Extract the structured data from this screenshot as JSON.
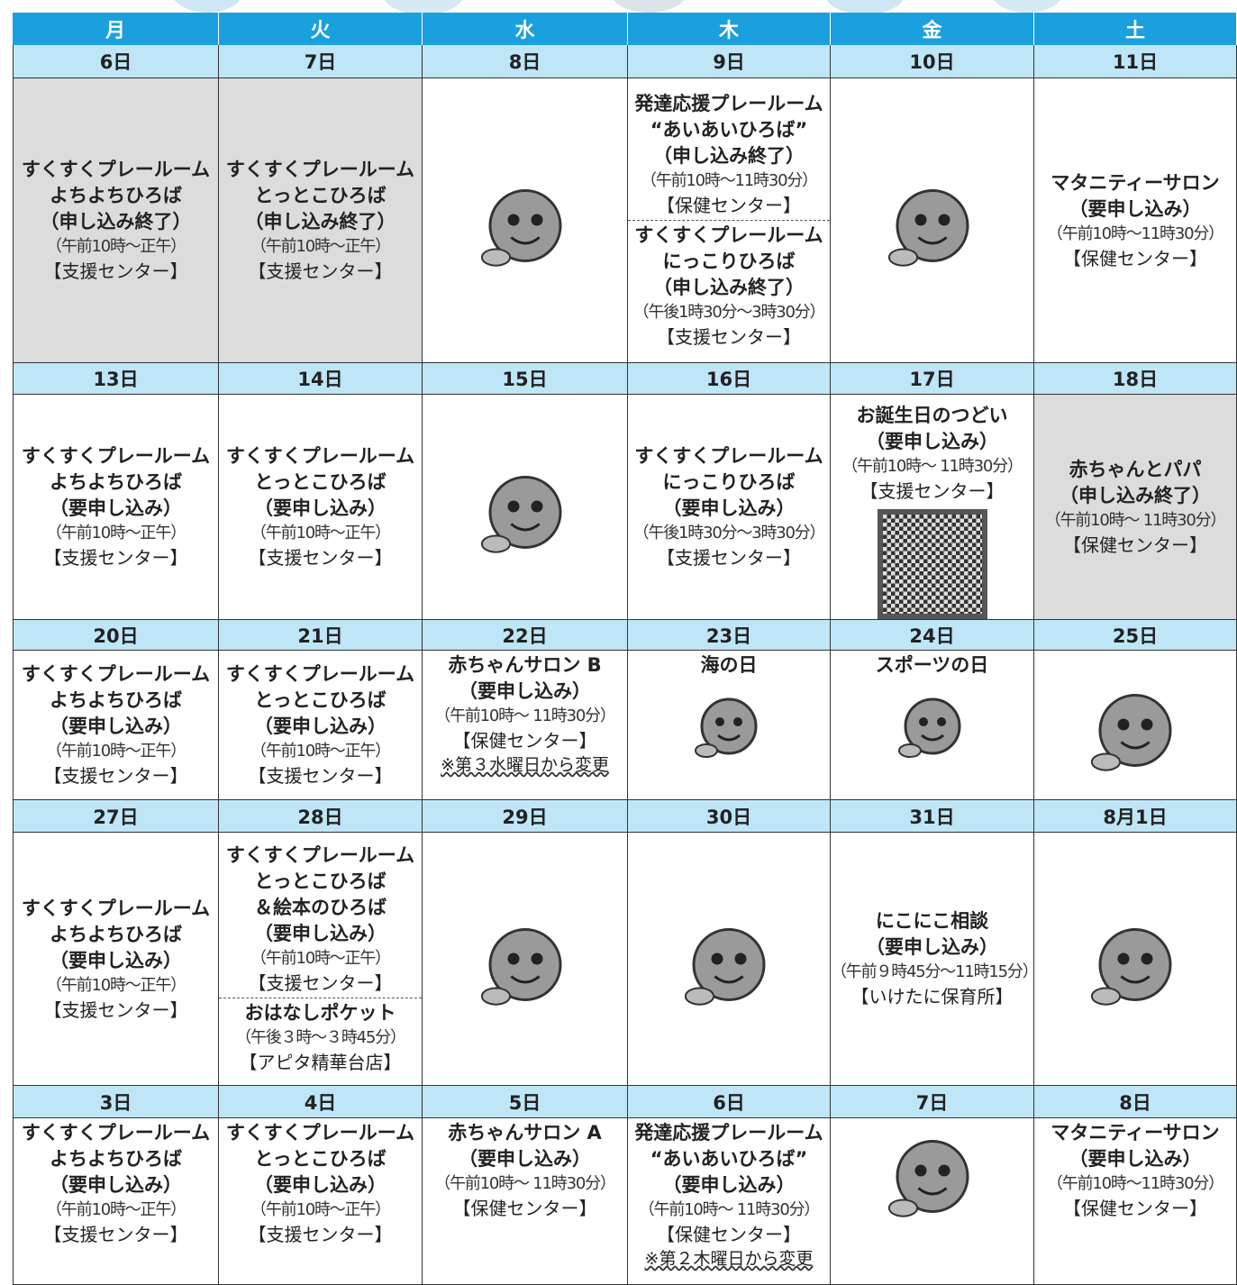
{
  "header": {
    "weekdays": [
      "月",
      "火",
      "水",
      "木",
      "金",
      "土"
    ]
  },
  "weeks": [
    {
      "dates": [
        "6日",
        "7日",
        "8日",
        "9日",
        "10日",
        "11日"
      ],
      "cells": [
        {
          "shaded": true,
          "items": [
            {
              "title": [
                "すくすくプレールーム",
                "よちよちひろば",
                "（申し込み終了）"
              ],
              "time": "（午前10時～正午）",
              "place": "【支援センター】"
            }
          ]
        },
        {
          "shaded": true,
          "items": [
            {
              "title": [
                "すくすくプレールーム",
                "とっとこひろば",
                "（申し込み終了）"
              ],
              "time": "（午前10時～正午）",
              "place": "【支援センター】"
            }
          ]
        },
        {
          "items": []
        },
        {
          "items": [
            {
              "title": [
                "発達応援プレールーム",
                "“あいあいひろば”",
                "（申し込み終了）"
              ],
              "time": "（午前10時～11時30分）",
              "place": "【保健センター】"
            },
            {
              "title": [
                "すくすくプレールーム",
                "にっこりひろば",
                "（申し込み終了）"
              ],
              "time": "（午後1時30分～3時30分）",
              "place": "【支援センター】"
            }
          ]
        },
        {
          "items": []
        },
        {
          "items": [
            {
              "title": [
                "マタニティーサロン",
                "（要申し込み）"
              ],
              "time": "（午前10時～11時30分）",
              "place": "【保健センター】"
            }
          ]
        }
      ]
    },
    {
      "dates": [
        "13日",
        "14日",
        "15日",
        "16日",
        "17日",
        "18日"
      ],
      "cells": [
        {
          "items": [
            {
              "title": [
                "すくすくプレールーム",
                "よちよちひろば",
                "（要申し込み）"
              ],
              "time": "（午前10時～正午）",
              "place": "【支援センター】"
            }
          ]
        },
        {
          "items": [
            {
              "title": [
                "すくすくプレールーム",
                "とっとこひろば",
                "（要申し込み）"
              ],
              "time": "（午前10時～正午）",
              "place": "【支援センター】"
            }
          ]
        },
        {
          "items": []
        },
        {
          "items": [
            {
              "title": [
                "すくすくプレールーム",
                "にっこりひろば",
                "（要申し込み）"
              ],
              "time": "（午後1時30分～3時30分）",
              "place": "【支援センター】"
            }
          ]
        },
        {
          "items": [
            {
              "title": [
                "お誕生日のつどい",
                "（要申し込み）"
              ],
              "time": "（午前10時～ 11時30分）",
              "place": "【支援センター】"
            }
          ]
        },
        {
          "shaded": true,
          "items": [
            {
              "title": [
                "赤ちゃんとパパ",
                "（申し込み終了）"
              ],
              "time": "（午前10時～ 11時30分）",
              "place": "【保健センター】"
            }
          ]
        }
      ]
    },
    {
      "dates": [
        "20日",
        "21日",
        "22日",
        "23日",
        "24日",
        "25日"
      ],
      "cells": [
        {
          "items": [
            {
              "title": [
                "すくすくプレールーム",
                "よちよちひろば",
                "（要申し込み）"
              ],
              "time": "（午前10時～正午）",
              "place": "【支援センター】"
            }
          ]
        },
        {
          "items": [
            {
              "title": [
                "すくすくプレールーム",
                "とっとこひろば",
                "（要申し込み）"
              ],
              "time": "（午前10時～正午）",
              "place": "【支援センター】"
            }
          ]
        },
        {
          "items": [
            {
              "title": [
                "赤ちゃんサロン B",
                "（要申し込み）"
              ],
              "time": "（午前10時～ 11時30分）",
              "place": "【保健センター】",
              "note": "※第３水曜日から変更"
            }
          ]
        },
        {
          "items": [
            {
              "title": [
                "海の日"
              ]
            }
          ]
        },
        {
          "items": [
            {
              "title": [
                "スポーツの日"
              ]
            }
          ]
        },
        {
          "items": []
        }
      ]
    },
    {
      "dates": [
        "27日",
        "28日",
        "29日",
        "30日",
        "31日",
        "8月1日"
      ],
      "cells": [
        {
          "items": [
            {
              "title": [
                "すくすくプレールーム",
                "よちよちひろば",
                "（要申し込み）"
              ],
              "time": "（午前10時～正午）",
              "place": "【支援センター】"
            }
          ]
        },
        {
          "items": [
            {
              "title": [
                "すくすくプレールーム",
                "とっとこひろば",
                "＆絵本のひろば",
                "（要申し込み）"
              ],
              "time": "（午前10時～正午）",
              "place": "【支援センター】"
            },
            {
              "title": [
                "おはなしポケット"
              ],
              "time": "（午後３時～３時45分）",
              "place": "【アピタ精華台店】"
            }
          ]
        },
        {
          "items": []
        },
        {
          "items": []
        },
        {
          "items": [
            {
              "title": [
                "にこにこ相談",
                "（要申し込み）"
              ],
              "time": "（午前９時45分～11時15分）",
              "place": "【いけたに保育所】"
            }
          ]
        },
        {
          "items": []
        }
      ]
    },
    {
      "dates": [
        "3日",
        "4日",
        "5日",
        "6日",
        "7日",
        "8日"
      ],
      "cells": [
        {
          "items": [
            {
              "title": [
                "すくすくプレールーム",
                "よちよちひろば",
                "（要申し込み）"
              ],
              "time": "（午前10時～正午）",
              "place": "【支援センター】"
            }
          ]
        },
        {
          "items": [
            {
              "title": [
                "すくすくプレールーム",
                "とっとこひろば",
                "（要申し込み）"
              ],
              "time": "（午前10時～正午）",
              "place": "【支援センター】"
            }
          ]
        },
        {
          "items": [
            {
              "title": [
                "赤ちゃんサロン A",
                "（要申し込み）"
              ],
              "time": "（午前10時～ 11時30分）",
              "place": "【保健センター】"
            }
          ]
        },
        {
          "items": [
            {
              "title": [
                "発達応援プレールーム",
                "“あいあいひろば”",
                "（要申し込み）"
              ],
              "time": "（午前10時～ 11時30分）",
              "place": "【保健センター】",
              "note": "※第２木曜日から変更"
            }
          ]
        },
        {
          "items": []
        },
        {
          "items": [
            {
              "title": [
                "マタニティーサロン",
                "（要申し込み）"
              ],
              "time": "（午前10時～11時30分）",
              "place": "【保健センター】"
            }
          ]
        }
      ]
    }
  ]
}
